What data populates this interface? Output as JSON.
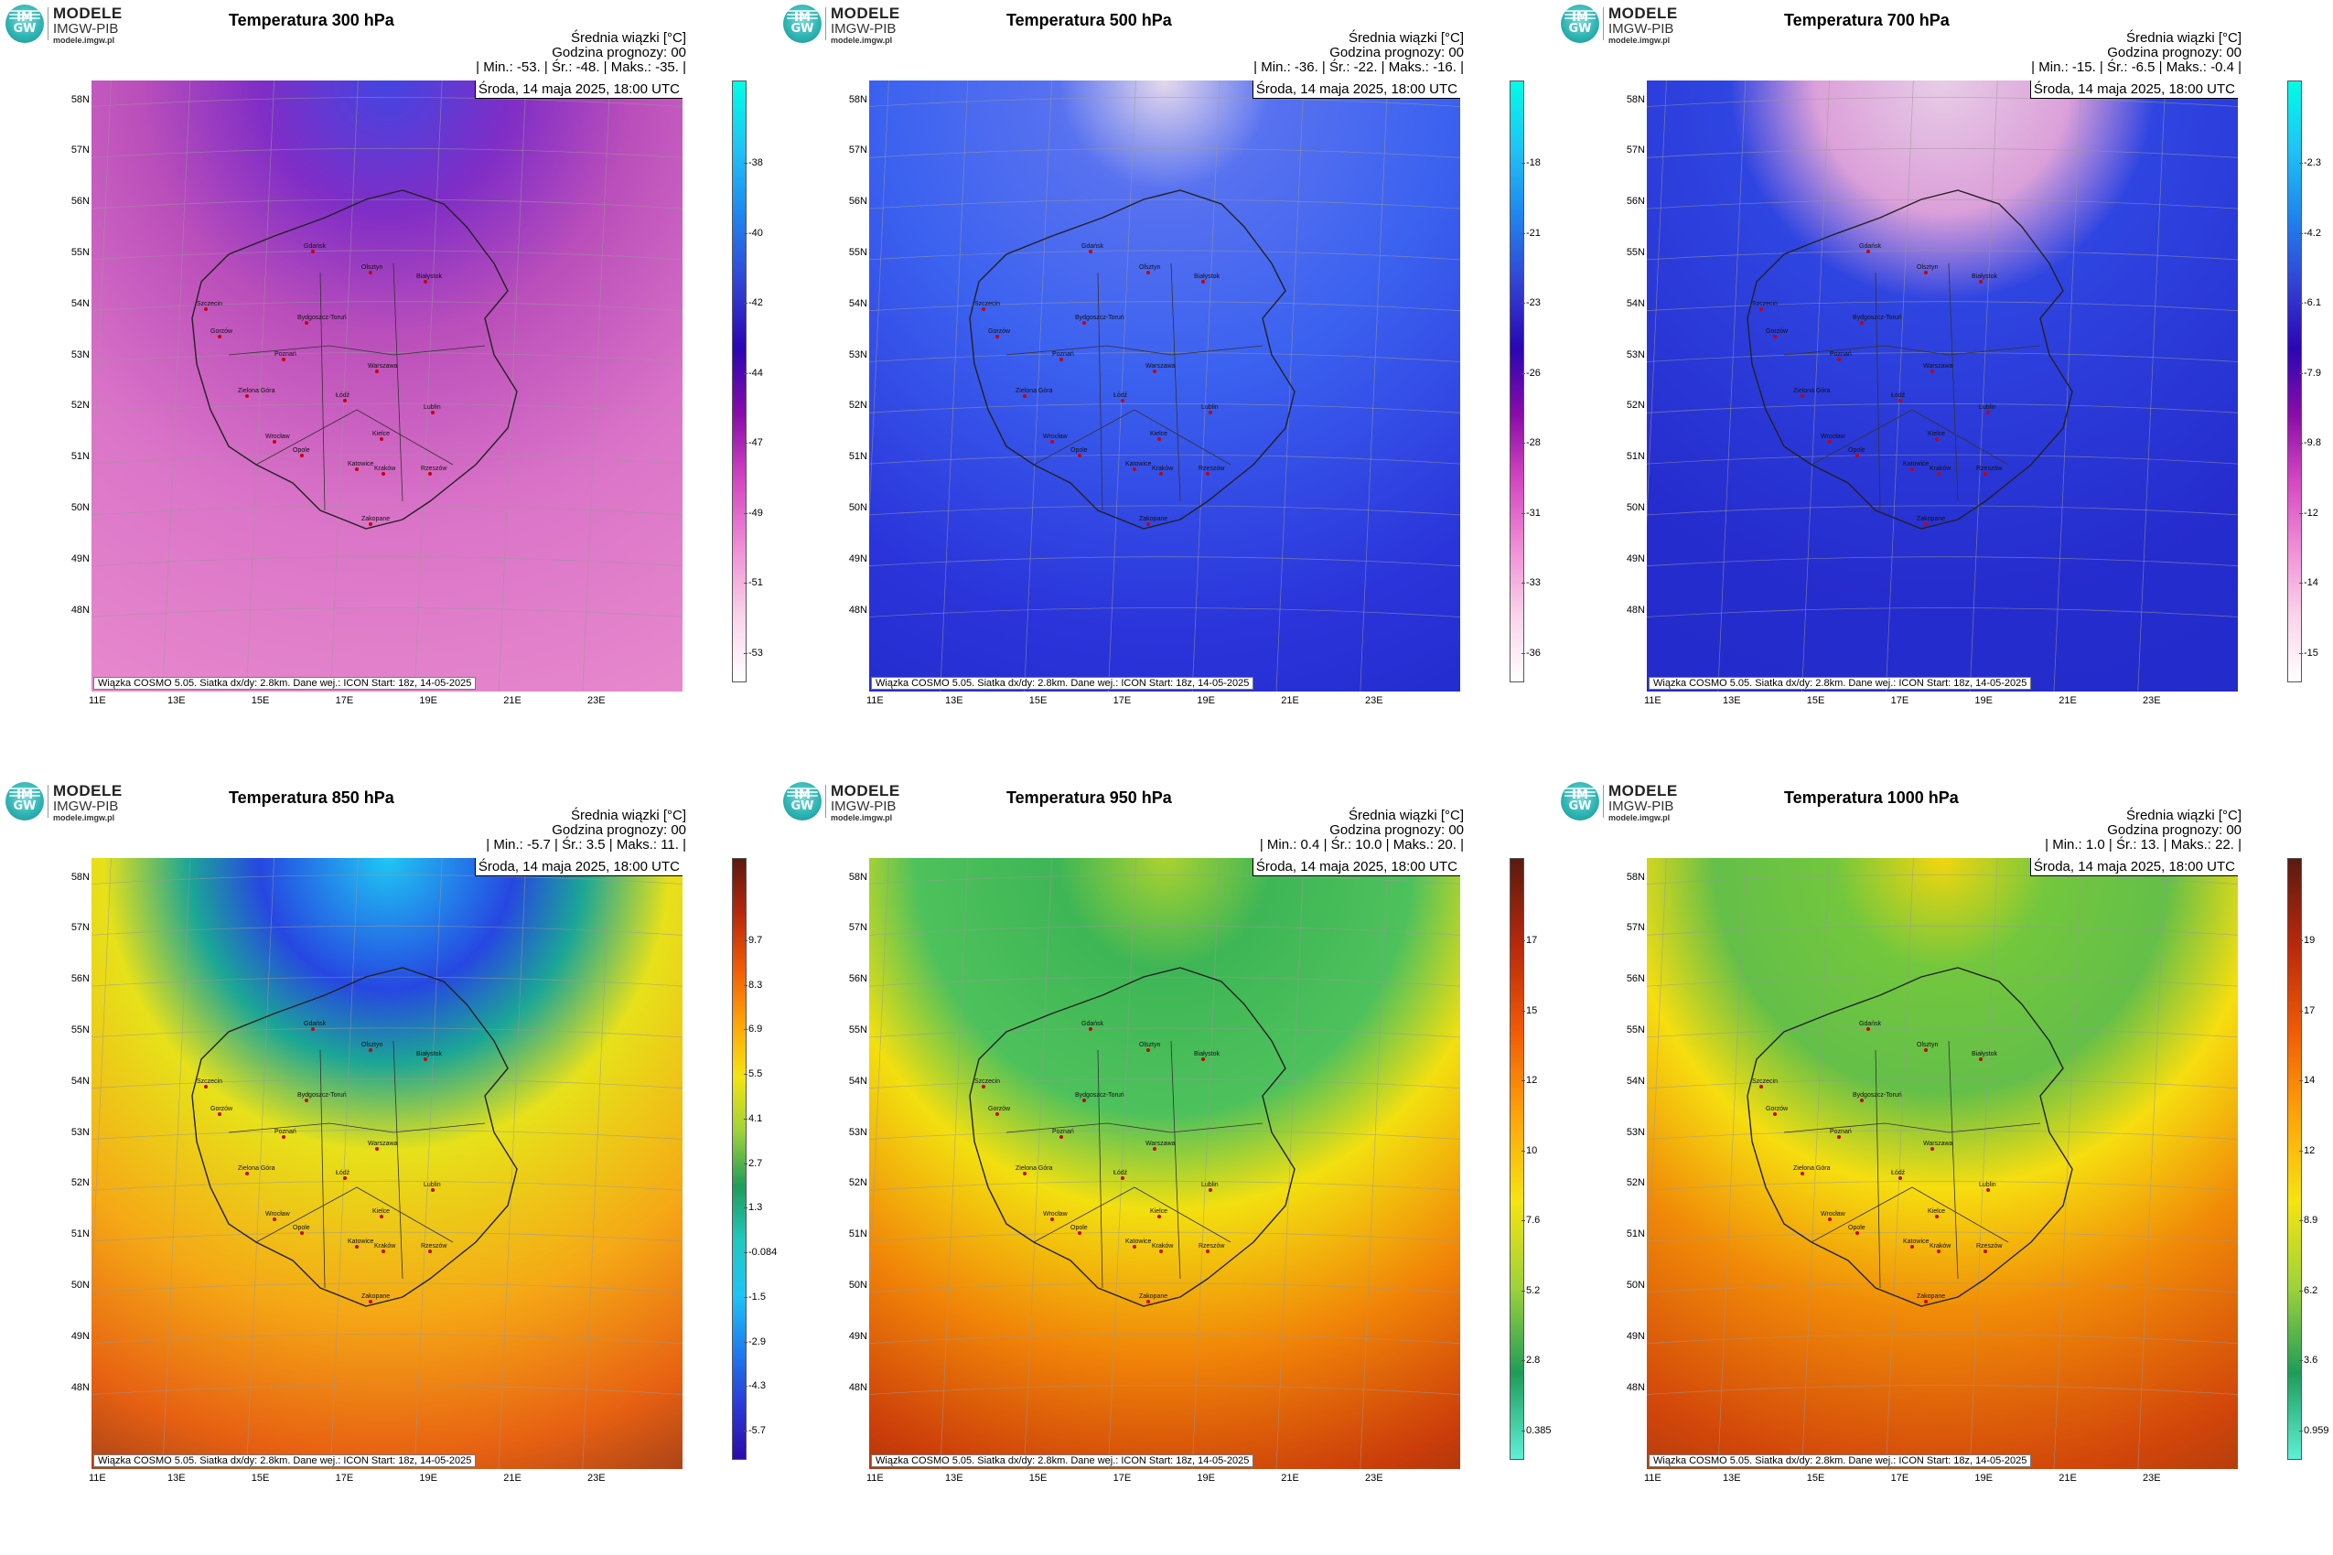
{
  "logo": {
    "line1": "MODELE",
    "line2": "IMGW-PIB",
    "line3": "modele.imgw.pl",
    "badge": "IM GW",
    "icon": "imgw-logo-icon"
  },
  "common": {
    "info_line1": "Średnia wiązki [°C]",
    "info_line2": "Godzina prognozy: 00",
    "date": "Środa, 14 maja 2025, 18:00 UTC",
    "footer": "Wiązka COSMO 5.05. Siatka dx/dy: 2.8km. Dane wej.: ICON Start: 18z, 14-05-2025",
    "lat_labels": [
      "58N",
      "57N",
      "56N",
      "55N",
      "54N",
      "53N",
      "52N",
      "51N",
      "50N",
      "49N",
      "48N"
    ],
    "lon_labels": [
      "11E",
      "13E",
      "15E",
      "17E",
      "19E",
      "21E",
      "23E"
    ]
  },
  "panels": [
    {
      "title": "Temperatura 300 hPa",
      "stats": "| Min.:     -53. | Śr.:      -48. | Maks.:    -35. |",
      "colorbar": [
        "-38",
        "-40",
        "-42",
        "-44",
        "-47",
        "-49",
        "-51",
        "-53"
      ]
    },
    {
      "title": "Temperatura 500 hPa",
      "stats": "| Min.:     -36. | Śr.:      -22. | Maks.:    -16. |",
      "colorbar": [
        "-18",
        "-21",
        "-23",
        "-26",
        "-28",
        "-31",
        "-33",
        "-36"
      ]
    },
    {
      "title": "Temperatura 700 hPa",
      "stats": "| Min.:     -15. | Śr.:      -6.5 | Maks.:    -0.4 |",
      "colorbar": [
        "-2.3",
        "-4.2",
        "-6.1",
        "-7.9",
        "-9.8",
        "-12",
        "-14",
        "-15"
      ]
    },
    {
      "title": "Temperatura 850 hPa",
      "stats": "| Min.:     -5.7 | Śr.:      3.5 | Maks.:    11. |",
      "colorbar": [
        "9.7",
        "8.3",
        "6.9",
        "5.5",
        "4.1",
        "2.7",
        "1.3",
        "-0.084",
        "-1.5",
        "-2.9",
        "-4.3",
        "-5.7"
      ]
    },
    {
      "title": "Temperatura 950 hPa",
      "stats": "| Min.:     0.4 | Śr.:      10.0 | Maks.:    20. |",
      "colorbar": [
        "17",
        "15",
        "12",
        "10",
        "7.6",
        "5.2",
        "2.8",
        "0.385"
      ]
    },
    {
      "title": "Temperatura 1000 hPa",
      "stats": "| Min.:     1.0 | Śr.:      13. | Maks.:    22. |",
      "colorbar": [
        "19",
        "17",
        "14",
        "12",
        "8.9",
        "6.2",
        "3.6",
        "0.959"
      ]
    }
  ],
  "cities": [
    "Gdańsk",
    "Olsztyn",
    "Białystok",
    "Szczecin",
    "Bydgoszcz-Toruń",
    "Gorzów",
    "Poznań",
    "Warszawa",
    "Zielona Góra",
    "Łódź",
    "Lublin",
    "Wrocław",
    "Kielce",
    "Opole",
    "Katowice",
    "Kraków",
    "Rzeszów",
    "Zakopane"
  ]
}
